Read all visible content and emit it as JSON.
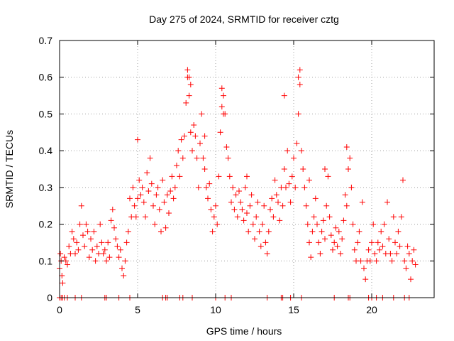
{
  "chart_data": {
    "type": "scatter",
    "title": "Day 275 of 2024, SRMTID for receiver cztg",
    "xlabel": "GPS time / hours",
    "ylabel": "SRMTID / TECUs",
    "xlim": [
      0,
      24
    ],
    "ylim": [
      0,
      0.7
    ],
    "xticks": [
      0,
      5,
      10,
      15,
      20
    ],
    "xtick_labels": [
      "0",
      "5",
      "10",
      "15",
      "20"
    ],
    "yticks": [
      0,
      0.1,
      0.2,
      0.3,
      0.4,
      0.5,
      0.6,
      0.7
    ],
    "ytick_labels": [
      "0",
      "0.1",
      "0.2",
      "0.3",
      "0.4",
      "0.5",
      "0.6",
      "0.7"
    ],
    "grid": true,
    "marker": "+",
    "color": "#ff0000",
    "series": [
      {
        "name": "SRMTID",
        "x": [
          0.0,
          0.05,
          0.1,
          0.15,
          0.2,
          0.3,
          0.4,
          0.5,
          0.6,
          0.7,
          0.8,
          0.9,
          1.0,
          1.1,
          1.2,
          1.3,
          1.4,
          1.5,
          1.6,
          1.7,
          1.8,
          1.9,
          2.0,
          2.1,
          2.2,
          2.3,
          2.4,
          2.5,
          2.6,
          2.7,
          2.8,
          2.9,
          3.0,
          3.1,
          3.2,
          3.3,
          3.4,
          3.5,
          3.6,
          3.7,
          3.8,
          3.9,
          4.0,
          4.1,
          4.2,
          4.3,
          4.4,
          4.5,
          4.6,
          4.7,
          4.8,
          4.9,
          5.0,
          5.1,
          5.2,
          5.3,
          5.4,
          5.5,
          5.6,
          5.7,
          5.8,
          5.9,
          6.0,
          6.1,
          6.2,
          6.3,
          6.4,
          6.5,
          6.6,
          6.7,
          6.8,
          6.9,
          7.0,
          7.1,
          7.2,
          7.3,
          7.4,
          7.5,
          7.6,
          7.7,
          7.8,
          7.9,
          8.0,
          8.1,
          8.2,
          8.3,
          8.4,
          8.5,
          8.6,
          8.7,
          8.8,
          8.9,
          9.0,
          9.1,
          9.2,
          9.3,
          9.4,
          9.5,
          9.6,
          9.7,
          9.8,
          9.9,
          10.0,
          10.1,
          10.2,
          10.3,
          10.4,
          10.5,
          10.6,
          10.7,
          10.8,
          10.9,
          11.0,
          11.1,
          11.2,
          11.3,
          11.4,
          11.5,
          11.6,
          11.7,
          11.8,
          11.9,
          12.0,
          12.1,
          12.2,
          12.3,
          12.4,
          12.5,
          12.6,
          12.7,
          12.8,
          12.9,
          13.0,
          13.1,
          13.2,
          13.3,
          13.4,
          13.5,
          13.6,
          13.7,
          13.8,
          13.9,
          14.0,
          14.1,
          14.2,
          14.3,
          14.4,
          14.5,
          14.6,
          14.7,
          14.8,
          14.9,
          15.0,
          15.1,
          15.2,
          15.3,
          15.4,
          15.5,
          15.6,
          15.7,
          15.8,
          15.9,
          16.0,
          16.1,
          16.2,
          16.3,
          16.4,
          16.5,
          16.6,
          16.7,
          16.8,
          16.9,
          17.0,
          17.1,
          17.2,
          17.3,
          17.4,
          17.5,
          17.6,
          17.7,
          17.8,
          17.9,
          18.0,
          18.1,
          18.2,
          18.3,
          18.4,
          18.5,
          18.6,
          18.7,
          18.8,
          18.9,
          19.0,
          19.1,
          19.2,
          19.3,
          19.4,
          19.5,
          19.6,
          19.7,
          19.8,
          19.9,
          20.0,
          20.1,
          20.2,
          20.3,
          20.4,
          20.5,
          20.6,
          20.7,
          20.8,
          20.9,
          21.0,
          21.1,
          21.2,
          21.3,
          21.4,
          21.5,
          21.6,
          21.7,
          21.8,
          21.9,
          22.0,
          22.1,
          22.2,
          22.3,
          22.4,
          22.5,
          22.6,
          22.7,
          22.8,
          0.0,
          0.1,
          0.2,
          0.3,
          0.5,
          1.0,
          1.4,
          2.9,
          3.0,
          3.8,
          4.5,
          6.6,
          6.8,
          6.9,
          7.7,
          7.9,
          8.5,
          10.0,
          10.6,
          11.0,
          13.3,
          14.2,
          14.3,
          14.8,
          15.5,
          17.6,
          18.5,
          18.6,
          19.8,
          20.0,
          20.3,
          20.7,
          21.4,
          22.1,
          22.4,
          8.2,
          8.3,
          8.4,
          15.3,
          15.4,
          10.4,
          10.5,
          14.4,
          18.4,
          21.0,
          5.0,
          9.3,
          16.0,
          17.0,
          12.0
        ],
        "y": [
          0.08,
          0.12,
          0.1,
          0.06,
          0.04,
          0.11,
          0.1,
          0.09,
          0.14,
          0.12,
          0.18,
          0.16,
          0.12,
          0.15,
          0.13,
          0.2,
          0.25,
          0.17,
          0.14,
          0.2,
          0.18,
          0.11,
          0.16,
          0.13,
          0.18,
          0.1,
          0.14,
          0.12,
          0.2,
          0.15,
          0.12,
          0.13,
          0.1,
          0.15,
          0.11,
          0.21,
          0.24,
          0.19,
          0.16,
          0.14,
          0.11,
          0.13,
          0.08,
          0.06,
          0.1,
          0.15,
          0.18,
          0.27,
          0.22,
          0.3,
          0.25,
          0.22,
          0.27,
          0.32,
          0.28,
          0.3,
          0.26,
          0.22,
          0.34,
          0.29,
          0.38,
          0.31,
          0.25,
          0.2,
          0.28,
          0.3,
          0.24,
          0.18,
          0.32,
          0.26,
          0.19,
          0.28,
          0.23,
          0.29,
          0.33,
          0.27,
          0.3,
          0.36,
          0.4,
          0.33,
          0.43,
          0.38,
          0.44,
          0.53,
          0.6,
          0.55,
          0.45,
          0.4,
          0.47,
          0.44,
          0.38,
          0.3,
          0.42,
          0.5,
          0.38,
          0.35,
          0.3,
          0.27,
          0.31,
          0.24,
          0.18,
          0.22,
          0.25,
          0.2,
          0.33,
          0.45,
          0.52,
          0.55,
          0.5,
          0.41,
          0.38,
          0.33,
          0.26,
          0.3,
          0.24,
          0.28,
          0.22,
          0.29,
          0.26,
          0.24,
          0.21,
          0.3,
          0.23,
          0.18,
          0.25,
          0.28,
          0.2,
          0.16,
          0.22,
          0.26,
          0.18,
          0.14,
          0.2,
          0.25,
          0.15,
          0.12,
          0.18,
          0.24,
          0.27,
          0.22,
          0.32,
          0.28,
          0.26,
          0.21,
          0.3,
          0.25,
          0.35,
          0.3,
          0.4,
          0.31,
          0.26,
          0.33,
          0.38,
          0.3,
          0.42,
          0.5,
          0.58,
          0.4,
          0.35,
          0.3,
          0.25,
          0.2,
          0.15,
          0.11,
          0.18,
          0.22,
          0.27,
          0.2,
          0.15,
          0.12,
          0.18,
          0.21,
          0.16,
          0.25,
          0.33,
          0.22,
          0.17,
          0.13,
          0.15,
          0.19,
          0.14,
          0.18,
          0.12,
          0.16,
          0.21,
          0.28,
          0.25,
          0.35,
          0.38,
          0.3,
          0.2,
          0.13,
          0.1,
          0.15,
          0.18,
          0.1,
          0.26,
          0.08,
          0.05,
          0.1,
          0.13,
          0.1,
          0.15,
          0.2,
          0.12,
          0.1,
          0.15,
          0.13,
          0.18,
          0.14,
          0.2,
          0.12,
          0.26,
          0.16,
          0.12,
          0.1,
          0.22,
          0.15,
          0.12,
          0.18,
          0.14,
          0.22,
          0.32,
          0.1,
          0.08,
          0.14,
          0.12,
          0.05,
          0.1,
          0.13,
          0.09,
          0.0,
          0.0,
          0.0,
          0.0,
          0.0,
          0.0,
          0.0,
          0.0,
          0.0,
          0.0,
          0.0,
          0.0,
          0.0,
          0.0,
          0.0,
          0.0,
          0.0,
          0.0,
          0.0,
          0.0,
          0.0,
          0.0,
          0.0,
          0.0,
          0.0,
          0.0,
          0.0,
          0.0,
          0.0,
          0.0,
          0.0,
          0.0,
          0.0,
          0.0,
          0.0,
          0.62,
          0.6,
          0.58,
          0.6,
          0.62,
          0.57,
          0.5,
          0.55,
          0.41,
          0.26,
          0.43,
          0.44,
          0.32,
          0.35,
          0.33
        ]
      }
    ]
  }
}
